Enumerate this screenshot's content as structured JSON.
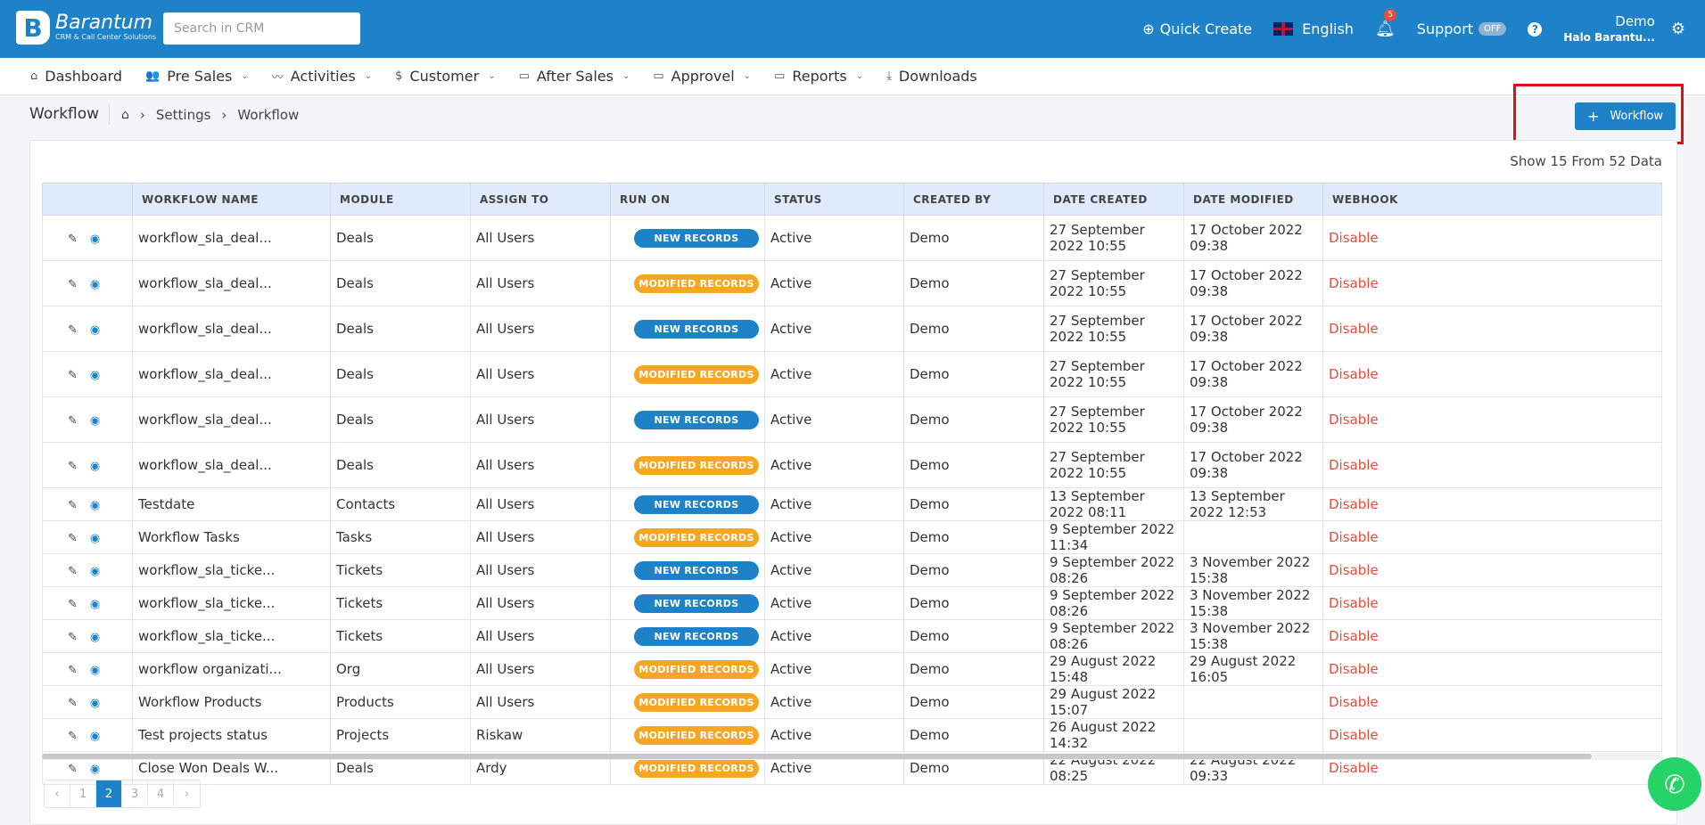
{
  "header": {
    "logo_mark": "B",
    "logo_name": "Barantum",
    "logo_sub": "CRM & Call Center Solutions",
    "search_placeholder": "Search in CRM",
    "quick_create": "Quick Create",
    "language": "English",
    "notif_count": "5",
    "support": "Support",
    "support_toggle": "OFF",
    "help": "?",
    "user_name": "Demo",
    "user_sub": "Halo Barantu..."
  },
  "nav": [
    {
      "label": "Dashboard",
      "icon": "home-icon",
      "glyph": "⌂",
      "chev": ""
    },
    {
      "label": "Pre Sales",
      "icon": "users-icon",
      "glyph": "👥",
      "chev": "⌄"
    },
    {
      "label": "Activities",
      "icon": "activity-icon",
      "glyph": "〰",
      "chev": "⌄"
    },
    {
      "label": "Customer",
      "icon": "dollar-icon",
      "glyph": "$",
      "chev": "⌄"
    },
    {
      "label": "After Sales",
      "icon": "folder-icon",
      "glyph": "▭",
      "chev": "⌄"
    },
    {
      "label": "Approvel",
      "icon": "folder-icon",
      "glyph": "▭",
      "chev": "⌄"
    },
    {
      "label": "Reports",
      "icon": "folder-icon",
      "glyph": "▭",
      "chev": "⌄"
    },
    {
      "label": "Downloads",
      "icon": "download-icon",
      "glyph": "⤓",
      "chev": ""
    }
  ],
  "page": {
    "title": "Workflow",
    "breadcrumb": [
      "Settings",
      "Workflow"
    ],
    "add_button": "Workflow",
    "show_info": "Show 15 From 52 Data"
  },
  "table": {
    "headers": [
      "",
      "WORKFLOW NAME",
      "MODULE",
      "ASSIGN TO",
      "RUN ON",
      "STATUS",
      "CREATED BY",
      "DATE CREATED",
      "DATE MODIFIED",
      "WEBHOOK"
    ],
    "rows": [
      {
        "name": "workflow_sla_deal...",
        "module": "Deals",
        "assign": "All Users",
        "run_on": "NEW RECORDS",
        "run_type": "new",
        "status": "Active",
        "created_by": "Demo",
        "date_created": "27 September 2022 10:55",
        "date_modified": "17 October 2022 09:38",
        "webhook": "Disable",
        "tall": true
      },
      {
        "name": "workflow_sla_deal...",
        "module": "Deals",
        "assign": "All Users",
        "run_on": "MODIFIED RECORDS",
        "run_type": "mod",
        "status": "Active",
        "created_by": "Demo",
        "date_created": "27 September 2022 10:55",
        "date_modified": "17 October 2022 09:38",
        "webhook": "Disable",
        "tall": true
      },
      {
        "name": "workflow_sla_deal...",
        "module": "Deals",
        "assign": "All Users",
        "run_on": "NEW RECORDS",
        "run_type": "new",
        "status": "Active",
        "created_by": "Demo",
        "date_created": "27 September 2022 10:55",
        "date_modified": "17 October 2022 09:38",
        "webhook": "Disable",
        "tall": true
      },
      {
        "name": "workflow_sla_deal...",
        "module": "Deals",
        "assign": "All Users",
        "run_on": "MODIFIED RECORDS",
        "run_type": "mod",
        "status": "Active",
        "created_by": "Demo",
        "date_created": "27 September 2022 10:55",
        "date_modified": "17 October 2022 09:38",
        "webhook": "Disable",
        "tall": true
      },
      {
        "name": "workflow_sla_deal...",
        "module": "Deals",
        "assign": "All Users",
        "run_on": "NEW RECORDS",
        "run_type": "new",
        "status": "Active",
        "created_by": "Demo",
        "date_created": "27 September 2022 10:55",
        "date_modified": "17 October 2022 09:38",
        "webhook": "Disable",
        "tall": true
      },
      {
        "name": "workflow_sla_deal...",
        "module": "Deals",
        "assign": "All Users",
        "run_on": "MODIFIED RECORDS",
        "run_type": "mod",
        "status": "Active",
        "created_by": "Demo",
        "date_created": "27 September 2022 10:55",
        "date_modified": "17 October 2022 09:38",
        "webhook": "Disable",
        "tall": true
      },
      {
        "name": "Testdate",
        "module": "Contacts",
        "assign": "All Users",
        "run_on": "NEW RECORDS",
        "run_type": "new",
        "status": "Active",
        "created_by": "Demo",
        "date_created": "13 September 2022 08:11",
        "date_modified": "13 September 2022 12:53",
        "webhook": "Disable",
        "tall": false
      },
      {
        "name": "Workflow Tasks",
        "module": "Tasks",
        "assign": "All Users",
        "run_on": "MODIFIED RECORDS",
        "run_type": "mod",
        "status": "Active",
        "created_by": "Demo",
        "date_created": "9 September 2022 11:34",
        "date_modified": "",
        "webhook": "Disable",
        "tall": false
      },
      {
        "name": "workflow_sla_ticke...",
        "module": "Tickets",
        "assign": "All Users",
        "run_on": "NEW RECORDS",
        "run_type": "new",
        "status": "Active",
        "created_by": "Demo",
        "date_created": "9 September 2022 08:26",
        "date_modified": "3 November 2022 15:38",
        "webhook": "Disable",
        "tall": false
      },
      {
        "name": "workflow_sla_ticke...",
        "module": "Tickets",
        "assign": "All Users",
        "run_on": "NEW RECORDS",
        "run_type": "new",
        "status": "Active",
        "created_by": "Demo",
        "date_created": "9 September 2022 08:26",
        "date_modified": "3 November 2022 15:38",
        "webhook": "Disable",
        "tall": false
      },
      {
        "name": "workflow_sla_ticke...",
        "module": "Tickets",
        "assign": "All Users",
        "run_on": "NEW RECORDS",
        "run_type": "new",
        "status": "Active",
        "created_by": "Demo",
        "date_created": "9 September 2022 08:26",
        "date_modified": "3 November 2022 15:38",
        "webhook": "Disable",
        "tall": false
      },
      {
        "name": "workflow organizati...",
        "module": "Org",
        "assign": "All Users",
        "run_on": "MODIFIED RECORDS",
        "run_type": "mod",
        "status": "Active",
        "created_by": "Demo",
        "date_created": "29 August 2022 15:48",
        "date_modified": "29 August 2022 16:05",
        "webhook": "Disable",
        "tall": false
      },
      {
        "name": "Workflow Products",
        "module": "Products",
        "assign": "All Users",
        "run_on": "MODIFIED RECORDS",
        "run_type": "mod",
        "status": "Active",
        "created_by": "Demo",
        "date_created": "29 August 2022 15:07",
        "date_modified": "",
        "webhook": "Disable",
        "tall": false
      },
      {
        "name": "Test projects status",
        "module": "Projects",
        "assign": "Riskaw",
        "run_on": "MODIFIED RECORDS",
        "run_type": "mod",
        "status": "Active",
        "created_by": "Demo",
        "date_created": "26 August 2022 14:32",
        "date_modified": "",
        "webhook": "Disable",
        "tall": false
      },
      {
        "name": "Close Won Deals W...",
        "module": "Deals",
        "assign": "Ardy",
        "run_on": "MODIFIED RECORDS",
        "run_type": "mod",
        "status": "Active",
        "created_by": "Demo",
        "date_created": "22 August 2022 08:25",
        "date_modified": "22 August 2022 09:33",
        "webhook": "Disable",
        "tall": false
      }
    ]
  },
  "pagination": {
    "prev": "‹",
    "pages": [
      "1",
      "2",
      "3",
      "4"
    ],
    "active": "2",
    "next": "›"
  },
  "colors": {
    "primary": "#1e82c8",
    "new_badge": "#1e82c8",
    "modified_badge": "#f5a623",
    "disable_text": "#e74c3c",
    "highlight": "#e01010"
  }
}
